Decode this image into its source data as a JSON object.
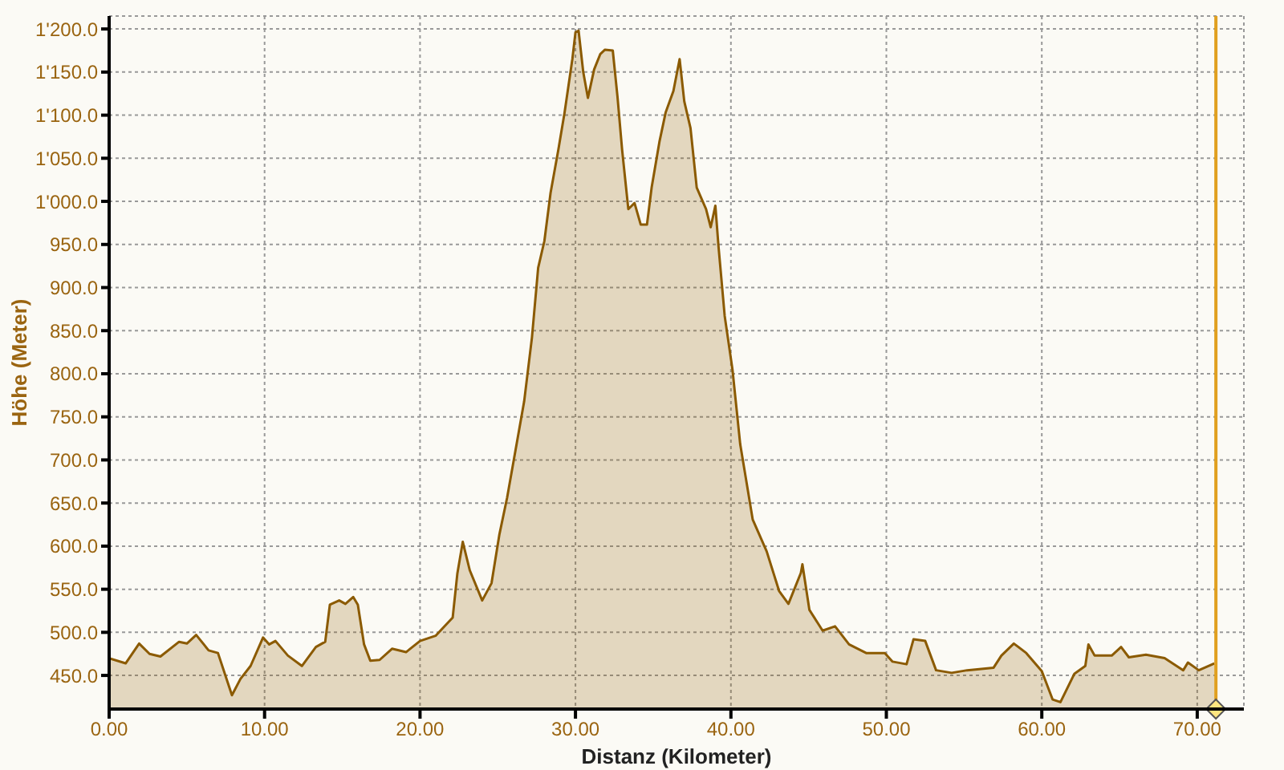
{
  "chart_data": {
    "type": "area",
    "xlabel": "Distanz (Kilometer)",
    "ylabel": "Höhe (Meter)",
    "x": [
      0,
      1.06,
      1.93,
      2.6,
      3.3,
      4.5,
      5.0,
      5.6,
      6.4,
      7.0,
      7.9,
      8.45,
      9.1,
      9.9,
      10.3,
      10.7,
      11.5,
      12.4,
      13.3,
      13.9,
      14.2,
      14.8,
      15.2,
      15.7,
      16.0,
      16.4,
      16.8,
      17.4,
      18.2,
      19.1,
      20.0,
      21.0,
      22.1,
      22.4,
      22.75,
      23.2,
      24.0,
      24.6,
      25.1,
      25.6,
      26.7,
      27.2,
      27.6,
      28.0,
      28.4,
      28.9,
      29.3,
      29.8,
      30.0,
      30.2,
      30.5,
      30.8,
      31.2,
      31.6,
      31.9,
      32.4,
      32.7,
      33.0,
      33.4,
      33.8,
      34.2,
      34.6,
      34.9,
      35.4,
      35.8,
      36.3,
      36.7,
      37.0,
      37.4,
      37.8,
      38.4,
      38.7,
      39.0,
      39.2,
      39.6,
      40.1,
      40.6,
      41.4,
      42.3,
      43.1,
      43.7,
      44.5,
      44.6,
      45.05,
      45.9,
      46.7,
      47.6,
      48.7,
      49.9,
      50.4,
      51.3,
      51.75,
      52.5,
      53.2,
      54.2,
      55.2,
      56.9,
      57.4,
      58.2,
      59.0,
      60.0,
      60.7,
      61.2,
      62.1,
      62.8,
      63.0,
      63.4,
      64.5,
      65.1,
      65.6,
      66.7,
      67.9,
      69.1,
      69.4,
      70.1,
      71.1
    ],
    "series": [
      {
        "color": "#8b5a00",
        "values": [
          470,
          464,
          487,
          475,
          472,
          489,
          487,
          497,
          479,
          476,
          427,
          446,
          461,
          494,
          486,
          490,
          473,
          461,
          483,
          489,
          532,
          537,
          533,
          541,
          532,
          486,
          467,
          468,
          481,
          477,
          490,
          496,
          517,
          568,
          605,
          572,
          537,
          557,
          613,
          656,
          768,
          842,
          923,
          954,
          1010,
          1060,
          1103,
          1165,
          1196,
          1198,
          1150,
          1120,
          1153,
          1171,
          1176,
          1175,
          1122,
          1060,
          991,
          998,
          973,
          973,
          1016,
          1069,
          1103,
          1128,
          1165,
          1116,
          1085,
          1016,
          991,
          970,
          995,
          948,
          867,
          805,
          718,
          631,
          594,
          548,
          533,
          569,
          579,
          526,
          502,
          507,
          486,
          476,
          476,
          466,
          463,
          492,
          490,
          456,
          453,
          456,
          459,
          473,
          487,
          476,
          455,
          422,
          419,
          452,
          461,
          486,
          473,
          473,
          483,
          471,
          474,
          470,
          456,
          465,
          456,
          464
        ]
      }
    ],
    "xlim": [
      0,
      73
    ],
    "ylim": [
      411,
      1215
    ],
    "xticks": [
      {
        "value": 0,
        "label": "0.00"
      },
      {
        "value": 10,
        "label": "10.00"
      },
      {
        "value": 20,
        "label": "20.00"
      },
      {
        "value": 30,
        "label": "30.00"
      },
      {
        "value": 40,
        "label": "40.00"
      },
      {
        "value": 50,
        "label": "50.00"
      },
      {
        "value": 60,
        "label": "60.00"
      },
      {
        "value": 70,
        "label": "70.00"
      }
    ],
    "yticks": [
      {
        "value": 450,
        "label": "450.0"
      },
      {
        "value": 500,
        "label": "500.0"
      },
      {
        "value": 550,
        "label": "550.0"
      },
      {
        "value": 600,
        "label": "600.0"
      },
      {
        "value": 650,
        "label": "650.0"
      },
      {
        "value": 700,
        "label": "700.0"
      },
      {
        "value": 750,
        "label": "750.0"
      },
      {
        "value": 800,
        "label": "800.0"
      },
      {
        "value": 850,
        "label": "850.0"
      },
      {
        "value": 900,
        "label": "900.0"
      },
      {
        "value": 950,
        "label": "950.0"
      },
      {
        "value": 1000,
        "label": "1'000.0"
      },
      {
        "value": 1050,
        "label": "1'050.0"
      },
      {
        "value": 1100,
        "label": "1'100.0"
      },
      {
        "value": 1150,
        "label": "1'150.0"
      },
      {
        "value": 1200,
        "label": "1'200.0"
      }
    ],
    "ref_lines": [
      {
        "axis": "x",
        "value": 71.2,
        "color": "#e0a020"
      }
    ],
    "grid": true,
    "line_style": "solid",
    "legend": false
  }
}
